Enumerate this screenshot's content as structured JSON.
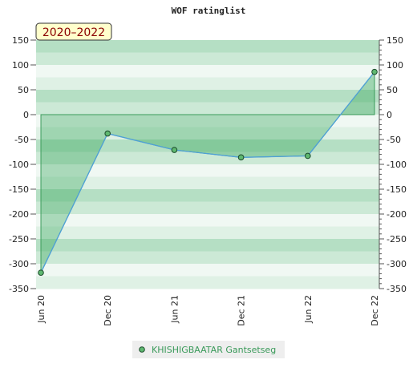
{
  "chart_data": {
    "type": "area-line",
    "title": "WOF ratinglist",
    "badge": "2020–2022",
    "categories": [
      "Jun 20",
      "Dec 20",
      "Jun 21",
      "Dec 21",
      "Jun 22",
      "Dec 22"
    ],
    "series": [
      {
        "name": "KHISHIGBAATAR Gantsetseg",
        "color": "#4fa0d8",
        "values": [
          -318,
          -38,
          -71,
          -86,
          -83,
          86
        ]
      }
    ],
    "ylim": [
      -350,
      150
    ],
    "yticks": [
      -350,
      -300,
      -250,
      -200,
      -150,
      -100,
      -50,
      0,
      50,
      100,
      150
    ],
    "y2lim": [
      -350,
      150
    ],
    "y2ticks": [
      -350,
      -300,
      -250,
      -200,
      -150,
      -100,
      -50,
      0,
      50,
      100,
      150
    ]
  }
}
